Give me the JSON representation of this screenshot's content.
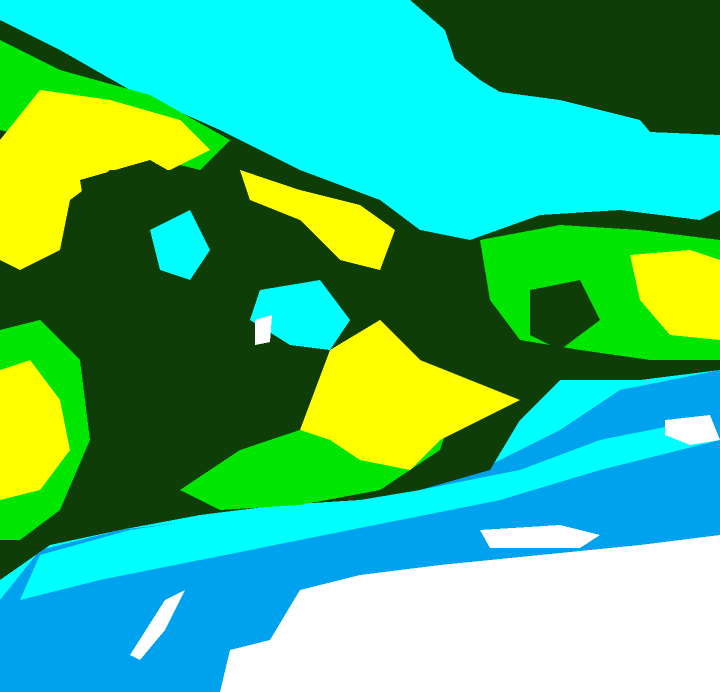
{
  "map": {
    "type": "classified-raster",
    "palette": {
      "dark_green": "#0f3d08",
      "green": "#00e600",
      "yellow": "#ffff00",
      "cyan": "#00ffff",
      "blue": "#00a2ee",
      "white": "#ffffff"
    }
  }
}
